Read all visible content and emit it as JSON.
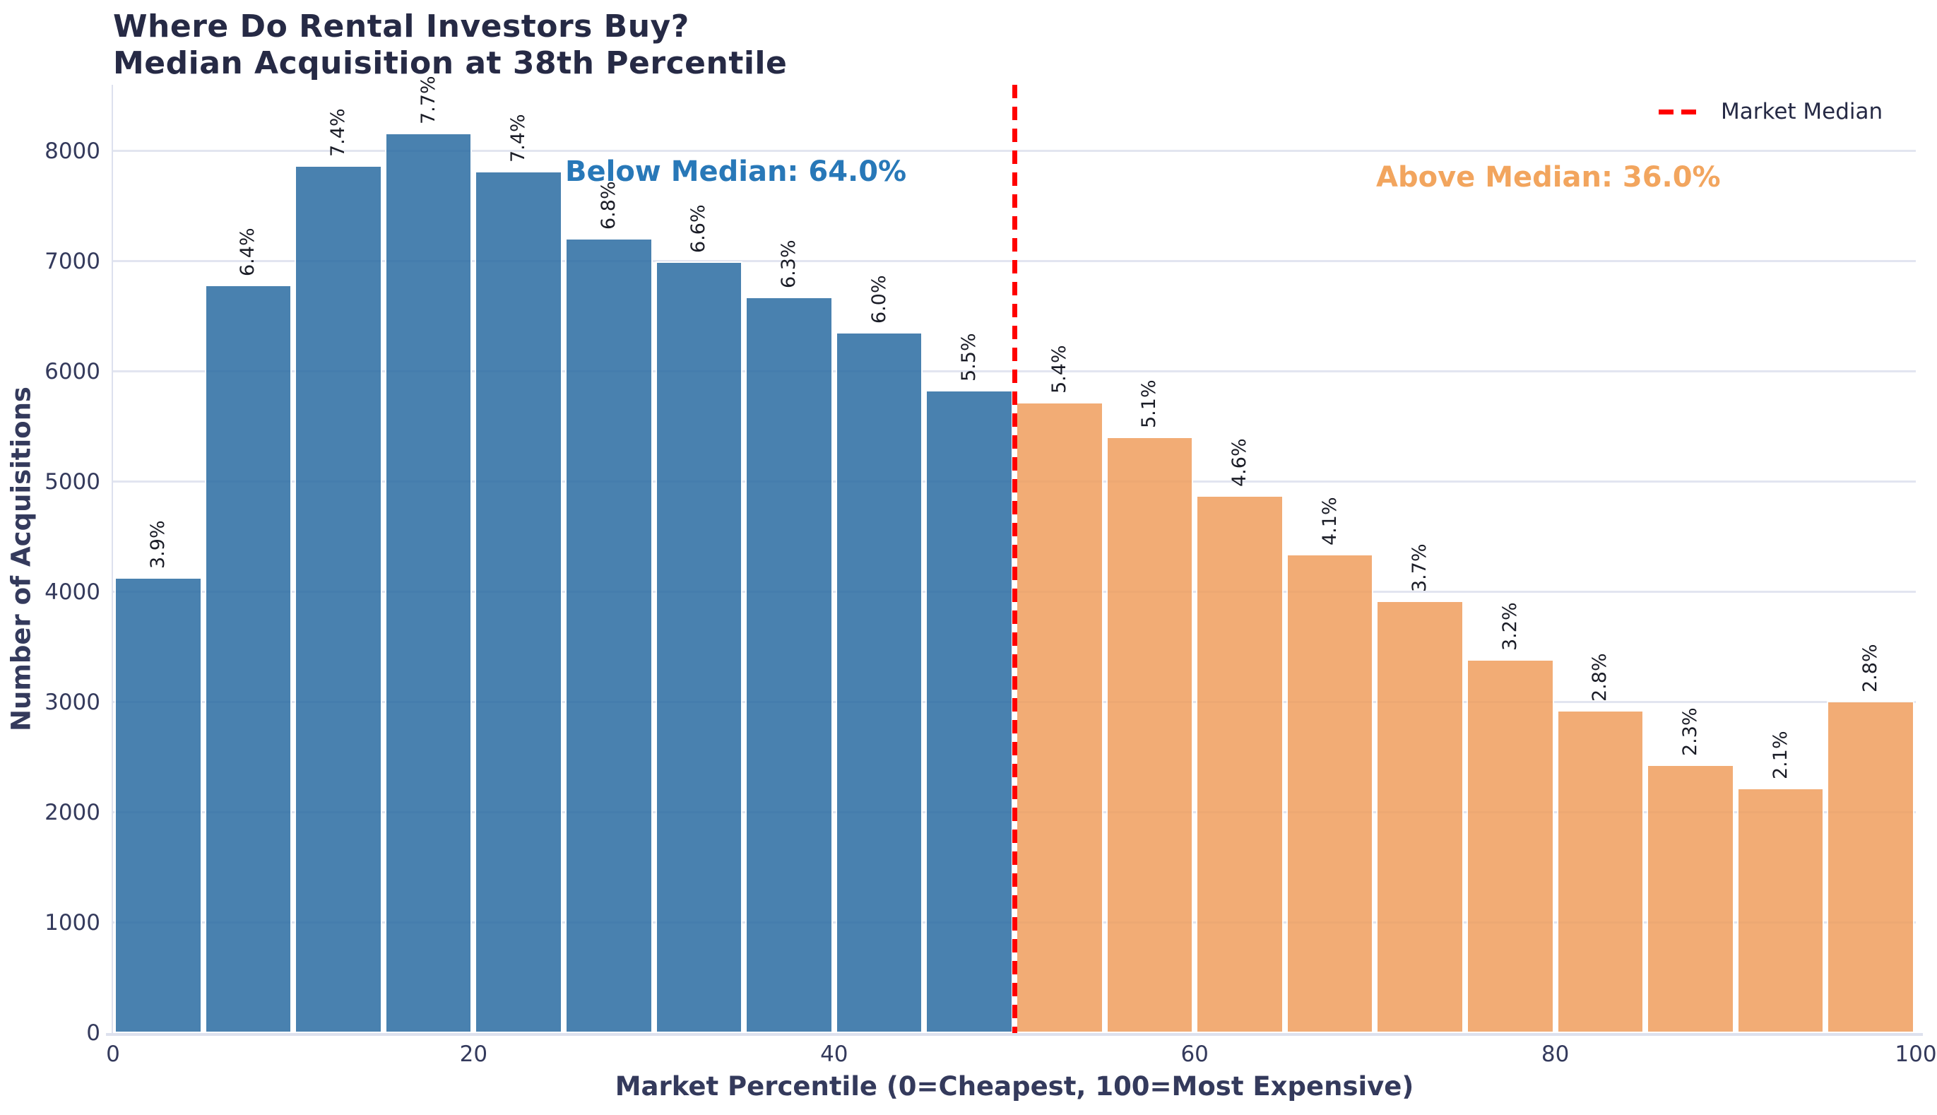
{
  "header": {
    "title_line1": "Where Do Rental Investors Buy?",
    "title_line2": "Median Acquisition at 38th Percentile"
  },
  "axes": {
    "x_title": "Market Percentile (0=Cheapest, 100=Most Expensive)",
    "y_title": "Number of Acquisitions"
  },
  "annotations": {
    "below_text": "Below Median: 64.0%",
    "above_text": "Above Median: 36.0%"
  },
  "legend": {
    "market_median_label": "Market Median"
  },
  "colors": {
    "below_fill": "#2a6ca2",
    "above_fill": "#f09e5e",
    "below_annotation": "#2878b8",
    "above_annotation": "#f2a55e",
    "median_line": "#ff0000",
    "grid": "#e2e5f0",
    "title_text": "#262a45",
    "tick_text": "#343a5c",
    "bar_label_text": "#1a1c26"
  },
  "chart_data": {
    "type": "bar",
    "title": "Where Do Rental Investors Buy? Median Acquisition at 38th Percentile",
    "xlabel": "Market Percentile (0=Cheapest, 100=Most Expensive)",
    "ylabel": "Number of Acquisitions",
    "xlim": [
      0,
      100
    ],
    "ylim": [
      0,
      8600
    ],
    "x_ticks": [
      0,
      20,
      40,
      60,
      80,
      100
    ],
    "y_ticks": [
      0,
      1000,
      2000,
      3000,
      4000,
      5000,
      6000,
      7000,
      8000
    ],
    "grid": true,
    "bin_width": 5,
    "median_line_x": 50,
    "median_percentile": 38,
    "legend_entries": [
      {
        "label": "Market Median",
        "style": "dashed",
        "color": "#ff0000"
      }
    ],
    "series_split": {
      "below_median_share": "64.0%",
      "above_median_share": "36.0%"
    },
    "bins": [
      {
        "start": 0,
        "end": 5,
        "count": 4134,
        "pct_label": "3.9%",
        "group": "below"
      },
      {
        "start": 5,
        "end": 10,
        "count": 6784,
        "pct_label": "6.4%",
        "group": "below"
      },
      {
        "start": 10,
        "end": 15,
        "count": 7870,
        "pct_label": "7.4%",
        "group": "below"
      },
      {
        "start": 15,
        "end": 20,
        "count": 8162,
        "pct_label": "7.7%",
        "group": "below"
      },
      {
        "start": 20,
        "end": 25,
        "count": 7820,
        "pct_label": "7.4%",
        "group": "below"
      },
      {
        "start": 25,
        "end": 30,
        "count": 7208,
        "pct_label": "6.8%",
        "group": "below"
      },
      {
        "start": 30,
        "end": 35,
        "count": 6996,
        "pct_label": "6.6%",
        "group": "below"
      },
      {
        "start": 35,
        "end": 40,
        "count": 6678,
        "pct_label": "6.3%",
        "group": "below"
      },
      {
        "start": 40,
        "end": 45,
        "count": 6360,
        "pct_label": "6.0%",
        "group": "below"
      },
      {
        "start": 45,
        "end": 50,
        "count": 5830,
        "pct_label": "5.5%",
        "group": "below"
      },
      {
        "start": 50,
        "end": 55,
        "count": 5724,
        "pct_label": "5.4%",
        "group": "above"
      },
      {
        "start": 55,
        "end": 60,
        "count": 5406,
        "pct_label": "5.1%",
        "group": "above"
      },
      {
        "start": 60,
        "end": 65,
        "count": 4876,
        "pct_label": "4.6%",
        "group": "above"
      },
      {
        "start": 65,
        "end": 70,
        "count": 4346,
        "pct_label": "4.1%",
        "group": "above"
      },
      {
        "start": 70,
        "end": 75,
        "count": 3922,
        "pct_label": "3.7%",
        "group": "above"
      },
      {
        "start": 75,
        "end": 80,
        "count": 3392,
        "pct_label": "3.2%",
        "group": "above"
      },
      {
        "start": 80,
        "end": 85,
        "count": 2930,
        "pct_label": "2.8%",
        "group": "above"
      },
      {
        "start": 85,
        "end": 90,
        "count": 2438,
        "pct_label": "2.3%",
        "group": "above"
      },
      {
        "start": 90,
        "end": 95,
        "count": 2226,
        "pct_label": "2.1%",
        "group": "above"
      },
      {
        "start": 95,
        "end": 100,
        "count": 3010,
        "pct_label": "2.8%",
        "group": "above"
      }
    ]
  }
}
